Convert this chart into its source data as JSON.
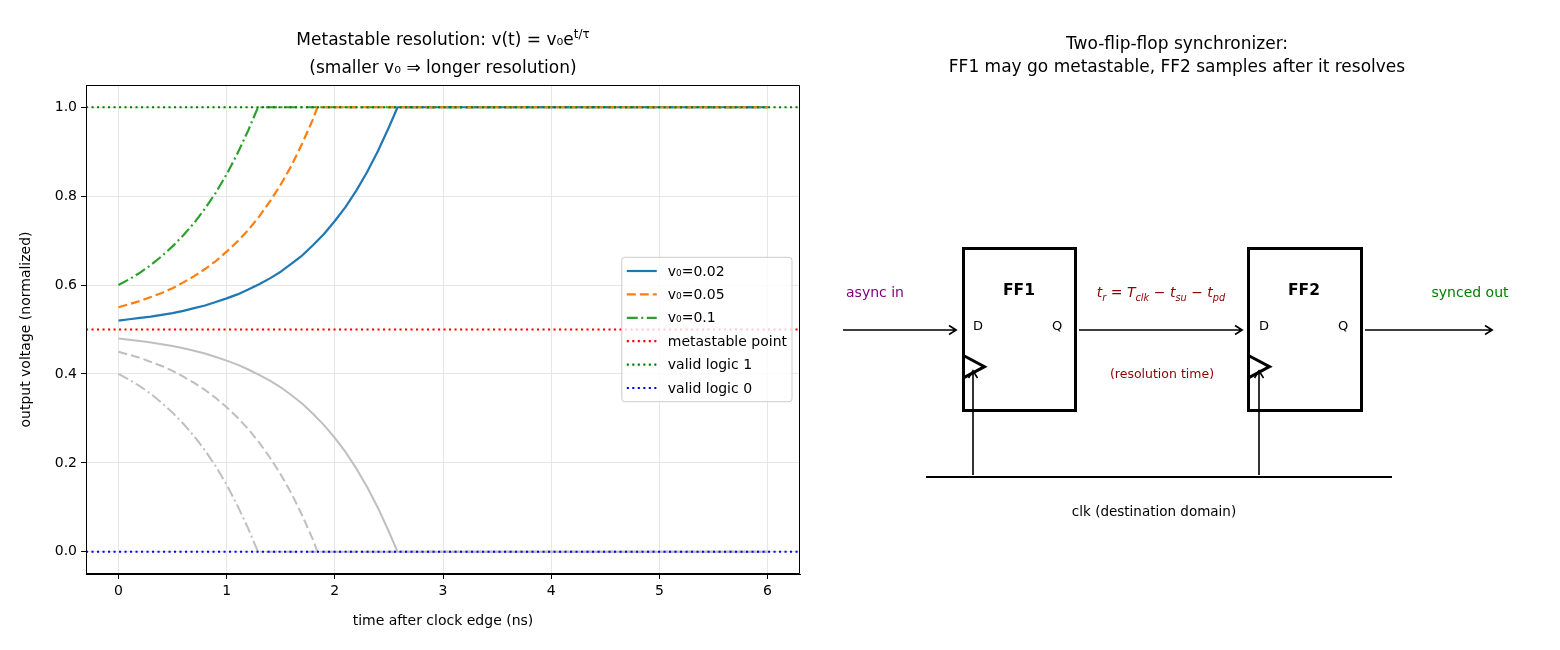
{
  "chart_data": [
    {
      "type": "line",
      "title": "Metastable resolution: v(t) = v₀e$^{t/τ}$\n(smaller v₀ ⇒ longer resolution)",
      "xlabel": "time after clock edge (ns)",
      "ylabel": "output voltage (normalized)",
      "xlim": [
        -0.3,
        6.3
      ],
      "ylim": [
        -0.05,
        1.05
      ],
      "xticks": [
        0,
        1,
        2,
        3,
        4,
        5,
        6
      ],
      "yticks": [
        {
          "value": 0,
          "label": "0.0"
        },
        0.2,
        0.4,
        0.6,
        0.8,
        {
          "value": 1,
          "label": "1.0"
        }
      ],
      "grid": true,
      "legend": "right",
      "series": [
        {
          "name": "v₀=0.02",
          "color": "#1f77b4",
          "line_style": "solid",
          "x": [
            0,
            0.1,
            0.2,
            0.3,
            0.4,
            0.5,
            0.6,
            0.7,
            0.8,
            0.9,
            1.0,
            1.1,
            1.2,
            1.3,
            1.4,
            1.5,
            1.6,
            1.7,
            1.8,
            1.9,
            2.0,
            2.1,
            2.2,
            2.3,
            2.4,
            2.5,
            2.58,
            6
          ],
          "values": [
            0.52,
            0.523,
            0.526,
            0.529,
            0.533,
            0.537,
            0.542,
            0.548,
            0.554,
            0.562,
            0.57,
            0.579,
            0.59,
            0.602,
            0.615,
            0.63,
            0.648,
            0.667,
            0.69,
            0.715,
            0.744,
            0.776,
            0.813,
            0.855,
            0.902,
            0.955,
            1,
            1
          ]
        },
        {
          "name": "v₀=0.05",
          "color": "#ff7f0e",
          "line_style": "dashed",
          "x": [
            0,
            0.1,
            0.2,
            0.3,
            0.4,
            0.5,
            0.6,
            0.7,
            0.8,
            0.9,
            1.0,
            1.1,
            1.2,
            1.3,
            1.4,
            1.5,
            1.6,
            1.7,
            1.8,
            1.84,
            6
          ],
          "values": [
            0.55,
            0.557,
            0.564,
            0.573,
            0.582,
            0.593,
            0.606,
            0.62,
            0.636,
            0.654,
            0.675,
            0.698,
            0.724,
            0.754,
            0.788,
            0.826,
            0.869,
            0.919,
            0.974,
            1,
            1
          ]
        },
        {
          "name": "v₀=0.1",
          "color": "#2ca02c",
          "line_style": "dashdot",
          "x": [
            0,
            0.1,
            0.2,
            0.3,
            0.4,
            0.5,
            0.6,
            0.7,
            0.8,
            0.9,
            1.0,
            1.1,
            1.2,
            1.25,
            1.29,
            6
          ],
          "values": [
            0.6,
            0.613,
            0.628,
            0.645,
            0.665,
            0.687,
            0.712,
            0.74,
            0.772,
            0.808,
            0.849,
            0.896,
            0.948,
            0.977,
            1,
            1
          ]
        },
        {
          "color": "#bfbfbf",
          "line_style": "solid",
          "x": [
            0,
            0.1,
            0.2,
            0.3,
            0.4,
            0.5,
            0.6,
            0.7,
            0.8,
            0.9,
            1.0,
            1.1,
            1.2,
            1.3,
            1.4,
            1.5,
            1.6,
            1.7,
            1.8,
            1.9,
            2.0,
            2.1,
            2.2,
            2.3,
            2.4,
            2.5,
            2.58,
            6
          ],
          "values": [
            0.48,
            0.477,
            0.474,
            0.471,
            0.467,
            0.463,
            0.458,
            0.452,
            0.446,
            0.438,
            0.43,
            0.421,
            0.41,
            0.398,
            0.385,
            0.37,
            0.352,
            0.333,
            0.31,
            0.285,
            0.256,
            0.224,
            0.187,
            0.145,
            0.098,
            0.045,
            0,
            0
          ]
        },
        {
          "color": "#bfbfbf",
          "line_style": "dashed",
          "x": [
            0,
            0.1,
            0.2,
            0.3,
            0.4,
            0.5,
            0.6,
            0.7,
            0.8,
            0.9,
            1.0,
            1.1,
            1.2,
            1.3,
            1.4,
            1.5,
            1.6,
            1.7,
            1.8,
            1.84,
            6
          ],
          "values": [
            0.45,
            0.443,
            0.436,
            0.427,
            0.418,
            0.407,
            0.394,
            0.38,
            0.364,
            0.346,
            0.325,
            0.302,
            0.276,
            0.246,
            0.212,
            0.174,
            0.131,
            0.081,
            0.026,
            0,
            0
          ]
        },
        {
          "color": "#bfbfbf",
          "line_style": "dashdot",
          "x": [
            0,
            0.1,
            0.2,
            0.3,
            0.4,
            0.5,
            0.6,
            0.7,
            0.8,
            0.9,
            1.0,
            1.1,
            1.2,
            1.25,
            1.29,
            6
          ],
          "values": [
            0.4,
            0.387,
            0.372,
            0.355,
            0.335,
            0.313,
            0.288,
            0.26,
            0.228,
            0.192,
            0.151,
            0.104,
            0.052,
            0.023,
            0,
            0
          ]
        }
      ],
      "ref_lines": [
        {
          "axis": "y",
          "value": 0.5,
          "label": "metastable point",
          "color": "#ff0000",
          "line_style": "dotted"
        },
        {
          "axis": "y",
          "value": 1,
          "label": "valid logic 1",
          "color": "#008000",
          "line_style": "dotted"
        },
        {
          "axis": "y",
          "value": 0,
          "label": "valid logic 0",
          "color": "#0000ff",
          "line_style": "dotted"
        }
      ]
    },
    {
      "type": "other",
      "title": "Two-flip-flop synchronizer:\nFF1 may go metastable, FF2 samples after it resolves",
      "annotations": [
        "async in",
        "FF1",
        "D",
        "Q",
        "t$_{r}$ = T$_{clk}$ − t$_{su}$ − t$_{pd}$",
        "(resolution time)",
        "FF2",
        "D",
        "Q",
        "synced out",
        "clk (destination domain)"
      ]
    }
  ]
}
